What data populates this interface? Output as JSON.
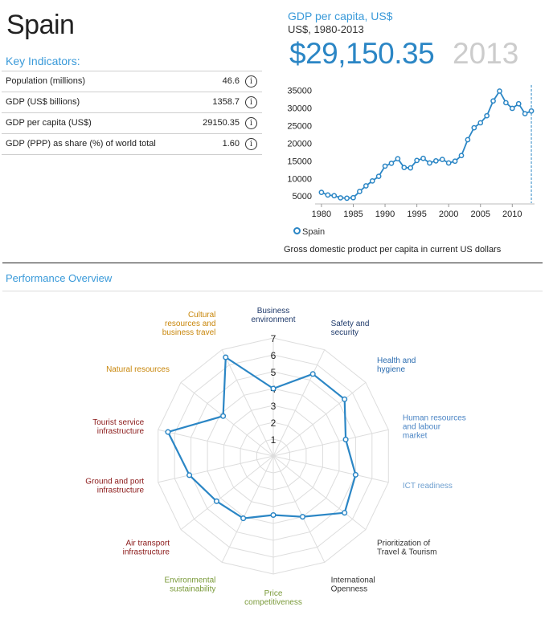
{
  "country": "Spain",
  "key_indicators": {
    "heading": "Key Indicators:",
    "rows": [
      {
        "label": "Population (millions)",
        "value": "46.6"
      },
      {
        "label": "GDP (US$ billions)",
        "value": "1358.7"
      },
      {
        "label": "GDP per capita (US$)",
        "value": "29150.35"
      },
      {
        "label": "GDP (PPP) as share (%) of world total",
        "value": "1.60"
      }
    ],
    "info_glyph": "i"
  },
  "gdp_panel": {
    "title": "GDP per capita, US$",
    "subtitle": "US$, 1980-2013",
    "value": "$29,150.35",
    "year": "2013",
    "legend": "Spain",
    "caption": "Gross domestic product per capita in current US dollars"
  },
  "performance": {
    "heading": "Performance Overview"
  },
  "colors": {
    "accent": "#3a9ad9",
    "series": "#2b86c5",
    "year_gray": "#cccccc"
  },
  "chart_data": [
    {
      "type": "line",
      "title": "GDP per capita, US$",
      "xlabel": "",
      "ylabel": "",
      "x": [
        1980,
        1981,
        1982,
        1983,
        1984,
        1985,
        1986,
        1987,
        1988,
        1989,
        1990,
        1991,
        1992,
        1993,
        1994,
        1995,
        1996,
        1997,
        1998,
        1999,
        2000,
        2001,
        2002,
        2003,
        2004,
        2005,
        2006,
        2007,
        2008,
        2009,
        2010,
        2011,
        2012,
        2013
      ],
      "series": [
        {
          "name": "Spain",
          "values": [
            6050,
            5300,
            5100,
            4500,
            4400,
            4550,
            6300,
            7900,
            9300,
            10600,
            13500,
            14300,
            15600,
            13100,
            13000,
            15100,
            15700,
            14400,
            15000,
            15400,
            14400,
            14900,
            16500,
            21000,
            24400,
            25800,
            27800,
            32000,
            34800,
            31500,
            29900,
            31200,
            28400,
            29150
          ]
        }
      ],
      "xticks": [
        1980,
        1985,
        1990,
        1995,
        2000,
        2005,
        2010
      ],
      "yticks": [
        5000,
        10000,
        15000,
        20000,
        25000,
        30000,
        35000
      ],
      "xlim": [
        1979,
        2013.5
      ],
      "ylim": [
        3000,
        36500
      ],
      "highlight_x": 2013
    },
    {
      "type": "radar",
      "title": "Performance Overview",
      "scale": [
        1,
        2,
        3,
        4,
        5,
        6,
        7
      ],
      "rmax": 7,
      "categories": [
        {
          "label": "Business\nenvironment",
          "color": "#1f3a6b"
        },
        {
          "label": "Safety and\nsecurity",
          "color": "#1f3a6b"
        },
        {
          "label": "Health and\nhygiene",
          "color": "#2b6cb0"
        },
        {
          "label": "Human resources\nand labour\nmarket",
          "color": "#4a84c4"
        },
        {
          "label": "ICT readiness",
          "color": "#6fa0d0"
        },
        {
          "label": "Prioritization of\nTravel & Tourism",
          "color": "#333333"
        },
        {
          "label": "International\nOpenness",
          "color": "#333333"
        },
        {
          "label": "Price\ncompetitiveness",
          "color": "#7a9a3a"
        },
        {
          "label": "Environmental\nsustainability",
          "color": "#7a9a3a"
        },
        {
          "label": "Air transport\ninfrastructure",
          "color": "#8b1a1a"
        },
        {
          "label": "Ground and port\ninfrastructure",
          "color": "#8b1a1a"
        },
        {
          "label": "Tourist service\ninfrastructure",
          "color": "#8b1a1a"
        },
        {
          "label": "Natural resources",
          "color": "#c8860a"
        },
        {
          "label": "Cultural\nresources and\nbusiness travel",
          "color": "#c8860a"
        }
      ],
      "series": [
        {
          "name": "Spain",
          "values": [
            4.0,
            5.4,
            5.4,
            4.4,
            5.0,
            5.4,
            4.0,
            3.5,
            4.1,
            4.3,
            5.1,
            6.4,
            3.8,
            6.5
          ]
        }
      ]
    }
  ]
}
